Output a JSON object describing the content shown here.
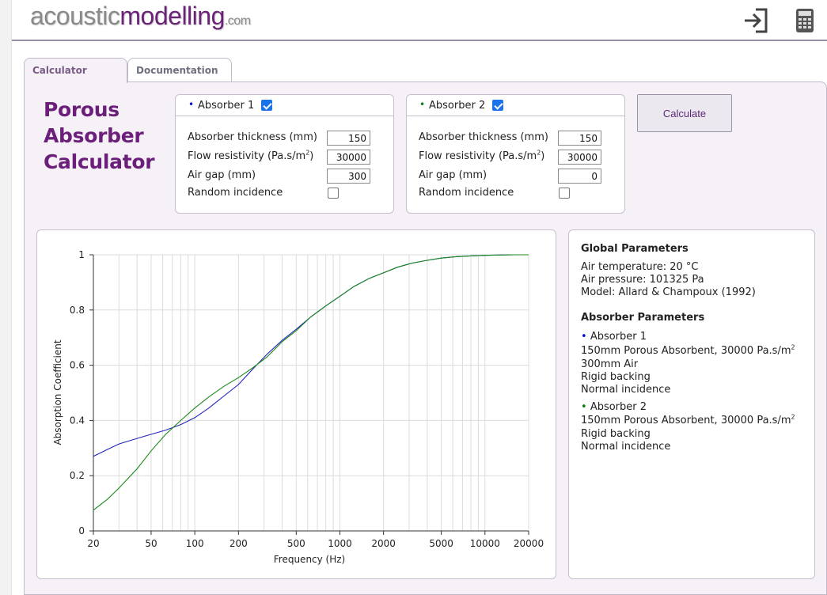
{
  "header": {
    "logo_part1": "acoustic",
    "logo_part2": "modelling",
    "logo_part3": ".com",
    "login_icon": "login-arrow-icon",
    "calculator_icon": "calculator-icon"
  },
  "tabs": [
    {
      "label": "Calculator",
      "active": true
    },
    {
      "label": "Documentation",
      "active": false
    }
  ],
  "app_title": [
    "Porous",
    "Absorber",
    "Calculator"
  ],
  "absorbers": [
    {
      "title": "Absorber 1",
      "dot": "•",
      "color": "#0b0bd0",
      "enabled": true,
      "thickness_label": "Absorber thickness (mm)",
      "thickness": "150",
      "flow_label": "Flow resistivity (Pa.s/m",
      "flow_sup": "2",
      "flow_label_end": ")",
      "flow": "30000",
      "airgap_label": "Air gap (mm)",
      "airgap": "300",
      "random_label": "Random incidence",
      "random": false
    },
    {
      "title": "Absorber 2",
      "dot": "•",
      "color": "#0c7a0c",
      "enabled": true,
      "thickness_label": "Absorber thickness (mm)",
      "thickness": "150",
      "flow_label": "Flow resistivity (Pa.s/m",
      "flow_sup": "2",
      "flow_label_end": ")",
      "flow": "30000",
      "airgap_label": "Air gap (mm)",
      "airgap": "0",
      "random_label": "Random incidence",
      "random": false
    }
  ],
  "calculate_label": "Calculate",
  "params": {
    "global_heading": "Global Parameters",
    "air_temp": "Air temperature: 20 °C",
    "air_pressure": "Air pressure: 101325 Pa",
    "model": "Model: Allard & Champoux (1992)",
    "absorber_heading": "Absorber Parameters",
    "a1_title": "Absorber 1",
    "a1_line1": "150mm Porous Absorbent, 30000 Pa.s/m",
    "a1_line1_sup": "2",
    "a1_line2": "300mm Air",
    "a1_line3": "Rigid backing",
    "a1_line4": "Normal incidence",
    "a2_title": "Absorber 2",
    "a2_line1": "150mm Porous Absorbent, 30000 Pa.s/m",
    "a2_line1_sup": "2",
    "a2_line2": "Rigid backing",
    "a2_line3": "Normal incidence"
  },
  "chart_data": {
    "type": "line",
    "xlabel": "Frequency (Hz)",
    "ylabel": "Absorption Coefficient",
    "xscale": "log",
    "xlim": [
      20,
      20000
    ],
    "ylim": [
      0,
      1
    ],
    "xticks": [
      20,
      50,
      100,
      200,
      500,
      1000,
      2000,
      5000,
      10000,
      20000
    ],
    "yticks": [
      0,
      0.2,
      0.4,
      0.6,
      0.8,
      1
    ],
    "grid": true,
    "series": [
      {
        "name": "Absorber 1",
        "color": "#2222bb",
        "x": [
          20,
          25,
          30,
          40,
          50,
          63,
          80,
          100,
          125,
          160,
          200,
          250,
          315,
          400,
          500,
          630,
          800,
          1000,
          1250,
          1600,
          2000,
          2500,
          3150,
          4000,
          5000,
          6300,
          8000,
          10000,
          12500,
          16000,
          20000
        ],
        "values": [
          0.27,
          0.295,
          0.315,
          0.335,
          0.35,
          0.365,
          0.385,
          0.41,
          0.445,
          0.49,
          0.53,
          0.585,
          0.64,
          0.69,
          0.73,
          0.775,
          0.815,
          0.85,
          0.885,
          0.915,
          0.935,
          0.955,
          0.97,
          0.98,
          0.988,
          0.993,
          0.996,
          0.998,
          0.999,
          1.0,
          1.0
        ]
      },
      {
        "name": "Absorber 2",
        "color": "#1a8a1a",
        "x": [
          20,
          25,
          30,
          40,
          50,
          63,
          80,
          100,
          125,
          160,
          200,
          250,
          315,
          400,
          500,
          630,
          800,
          1000,
          1250,
          1600,
          2000,
          2500,
          3150,
          4000,
          5000,
          6300,
          8000,
          10000,
          12500,
          16000,
          20000
        ],
        "values": [
          0.075,
          0.115,
          0.155,
          0.225,
          0.29,
          0.35,
          0.4,
          0.445,
          0.485,
          0.525,
          0.555,
          0.59,
          0.63,
          0.685,
          0.725,
          0.775,
          0.815,
          0.85,
          0.885,
          0.915,
          0.935,
          0.955,
          0.97,
          0.98,
          0.988,
          0.993,
          0.996,
          0.998,
          0.999,
          1.0,
          1.0
        ]
      }
    ]
  }
}
